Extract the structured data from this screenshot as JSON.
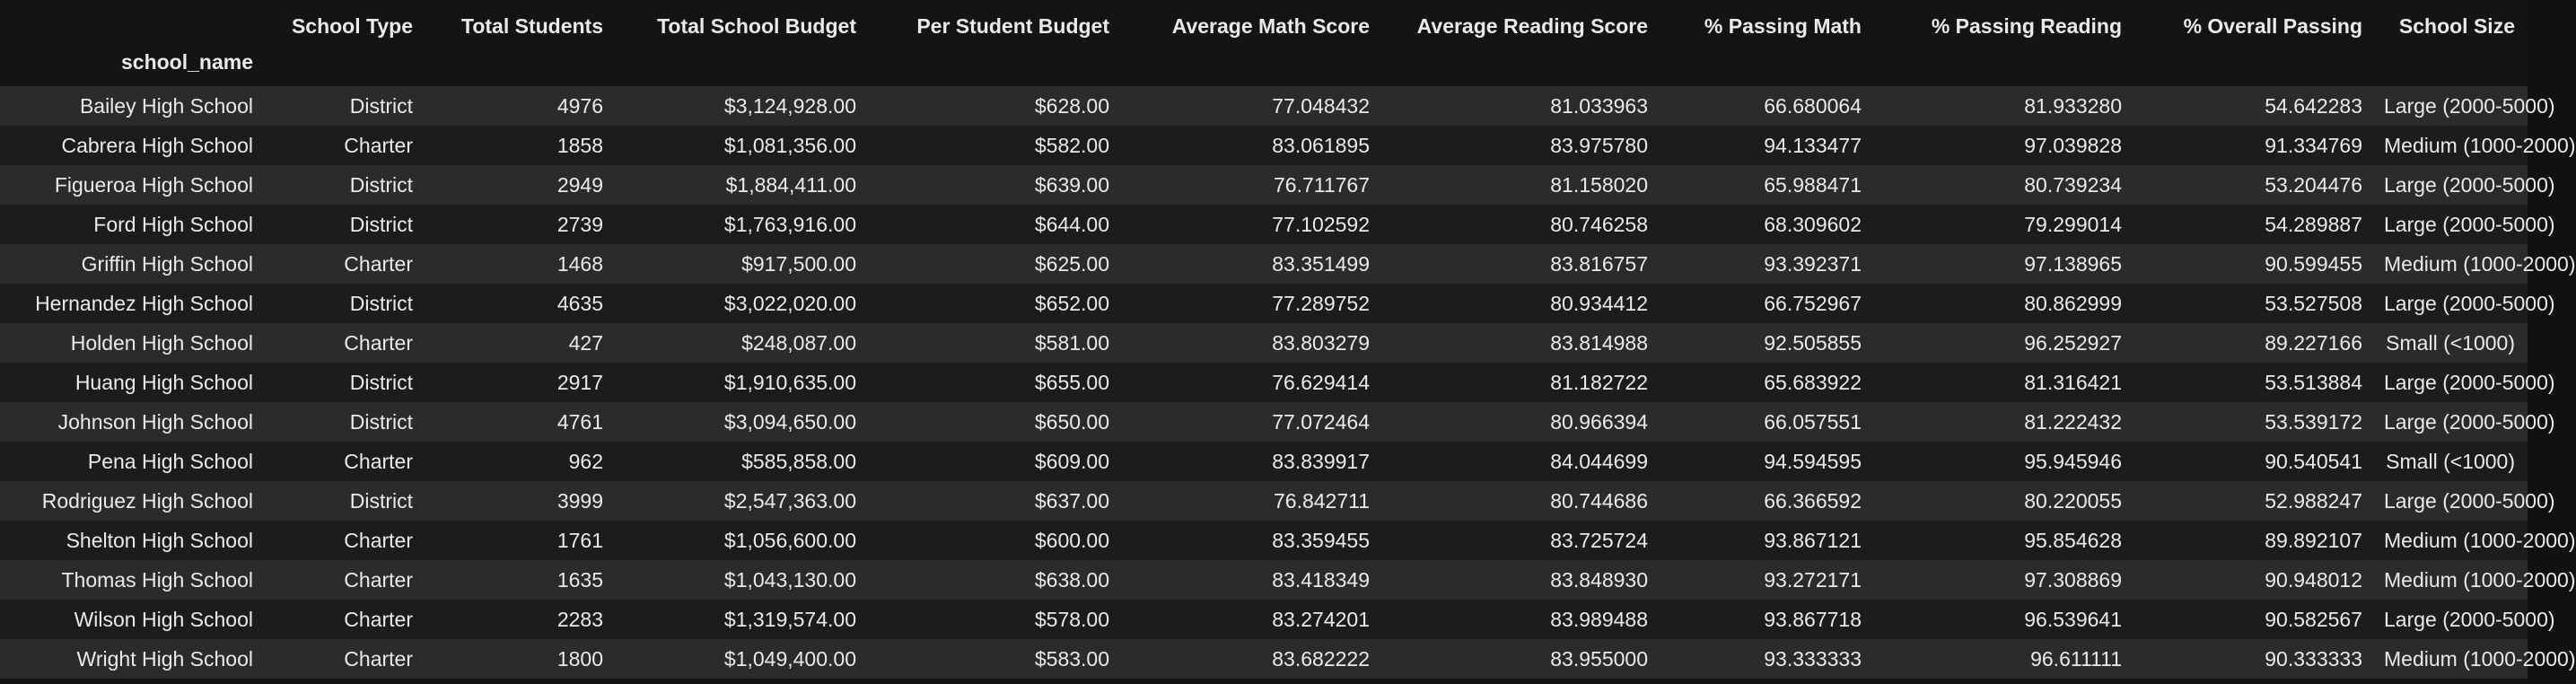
{
  "table": {
    "index_name": "school_name",
    "columns": [
      "School Type",
      "Total Students",
      "Total School Budget",
      "Per Student Budget",
      "Average Math Score",
      "Average Reading Score",
      "% Passing Math",
      "% Passing Reading",
      "% Overall Passing",
      "School Size"
    ],
    "rows": [
      {
        "name": "Bailey High School",
        "cells": [
          "District",
          "4976",
          "$3,124,928.00",
          "$628.00",
          "77.048432",
          "81.033963",
          "66.680064",
          "81.933280",
          "54.642283",
          "Large (2000-5000)"
        ]
      },
      {
        "name": "Cabrera High School",
        "cells": [
          "Charter",
          "1858",
          "$1,081,356.00",
          "$582.00",
          "83.061895",
          "83.975780",
          "94.133477",
          "97.039828",
          "91.334769",
          "Medium (1000-2000)"
        ]
      },
      {
        "name": "Figueroa High School",
        "cells": [
          "District",
          "2949",
          "$1,884,411.00",
          "$639.00",
          "76.711767",
          "81.158020",
          "65.988471",
          "80.739234",
          "53.204476",
          "Large (2000-5000)"
        ]
      },
      {
        "name": "Ford High School",
        "cells": [
          "District",
          "2739",
          "$1,763,916.00",
          "$644.00",
          "77.102592",
          "80.746258",
          "68.309602",
          "79.299014",
          "54.289887",
          "Large (2000-5000)"
        ]
      },
      {
        "name": "Griffin High School",
        "cells": [
          "Charter",
          "1468",
          "$917,500.00",
          "$625.00",
          "83.351499",
          "83.816757",
          "93.392371",
          "97.138965",
          "90.599455",
          "Medium (1000-2000)"
        ]
      },
      {
        "name": "Hernandez High School",
        "cells": [
          "District",
          "4635",
          "$3,022,020.00",
          "$652.00",
          "77.289752",
          "80.934412",
          "66.752967",
          "80.862999",
          "53.527508",
          "Large (2000-5000)"
        ]
      },
      {
        "name": "Holden High School",
        "cells": [
          "Charter",
          "427",
          "$248,087.00",
          "$581.00",
          "83.803279",
          "83.814988",
          "92.505855",
          "96.252927",
          "89.227166",
          "Small (<1000)"
        ]
      },
      {
        "name": "Huang High School",
        "cells": [
          "District",
          "2917",
          "$1,910,635.00",
          "$655.00",
          "76.629414",
          "81.182722",
          "65.683922",
          "81.316421",
          "53.513884",
          "Large (2000-5000)"
        ]
      },
      {
        "name": "Johnson High School",
        "cells": [
          "District",
          "4761",
          "$3,094,650.00",
          "$650.00",
          "77.072464",
          "80.966394",
          "66.057551",
          "81.222432",
          "53.539172",
          "Large (2000-5000)"
        ]
      },
      {
        "name": "Pena High School",
        "cells": [
          "Charter",
          "962",
          "$585,858.00",
          "$609.00",
          "83.839917",
          "84.044699",
          "94.594595",
          "95.945946",
          "90.540541",
          "Small (<1000)"
        ]
      },
      {
        "name": "Rodriguez High School",
        "cells": [
          "District",
          "3999",
          "$2,547,363.00",
          "$637.00",
          "76.842711",
          "80.744686",
          "66.366592",
          "80.220055",
          "52.988247",
          "Large (2000-5000)"
        ]
      },
      {
        "name": "Shelton High School",
        "cells": [
          "Charter",
          "1761",
          "$1,056,600.00",
          "$600.00",
          "83.359455",
          "83.725724",
          "93.867121",
          "95.854628",
          "89.892107",
          "Medium (1000-2000)"
        ]
      },
      {
        "name": "Thomas High School",
        "cells": [
          "Charter",
          "1635",
          "$1,043,130.00",
          "$638.00",
          "83.418349",
          "83.848930",
          "93.272171",
          "97.308869",
          "90.948012",
          "Medium (1000-2000)"
        ]
      },
      {
        "name": "Wilson High School",
        "cells": [
          "Charter",
          "2283",
          "$1,319,574.00",
          "$578.00",
          "83.274201",
          "83.989488",
          "93.867718",
          "96.539641",
          "90.582567",
          "Large (2000-5000)"
        ]
      },
      {
        "name": "Wright High School",
        "cells": [
          "Charter",
          "1800",
          "$1,049,400.00",
          "$583.00",
          "83.682222",
          "83.955000",
          "93.333333",
          "96.611111",
          "90.333333",
          "Medium (1000-2000)"
        ]
      }
    ]
  }
}
